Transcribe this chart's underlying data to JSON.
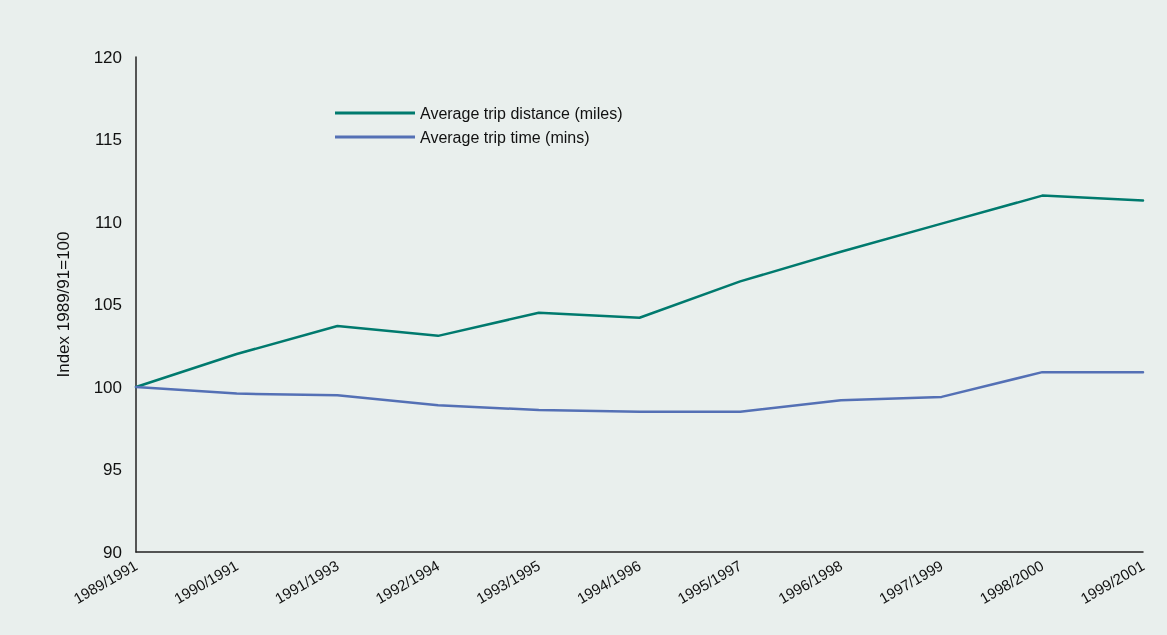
{
  "chart_data": {
    "type": "line",
    "ylabel": "Index 1989/91=100",
    "categories": [
      "1989/1991",
      "1990/1991",
      "1991/1993",
      "1992/1994",
      "1993/1995",
      "1994/1996",
      "1995/1997",
      "1996/1998",
      "1997/1999",
      "1998/2000",
      "1999/2001"
    ],
    "series": [
      {
        "name": "Average trip distance (miles)",
        "color": "#007a6e",
        "values": [
          100,
          102.0,
          103.7,
          103.1,
          104.5,
          104.2,
          106.4,
          108.2,
          109.9,
          111.6,
          111.3
        ]
      },
      {
        "name": "Average trip time (mins)",
        "color": "#5470b5",
        "values": [
          100,
          99.6,
          99.5,
          98.9,
          98.6,
          98.5,
          98.5,
          99.2,
          99.4,
          100.9,
          100.9
        ]
      }
    ],
    "ylim": [
      90,
      120
    ],
    "yticks": [
      90,
      95,
      100,
      105,
      110,
      115,
      120
    ],
    "grid": false,
    "legend": "top left",
    "marker": "none",
    "line_style": "solid"
  }
}
